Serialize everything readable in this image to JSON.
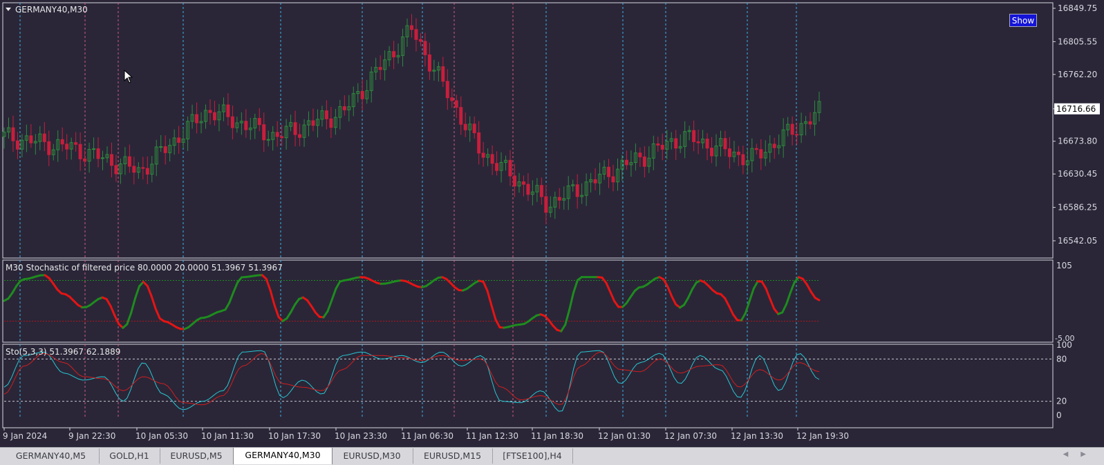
{
  "main_chart": {
    "title": "GERMANY40,M30",
    "price_labels": [
      "16849.75",
      "16805.55",
      "16762.20",
      "16716.66",
      "16673.80",
      "16630.45",
      "16586.25",
      "16542.05"
    ],
    "current_price": "16716.66",
    "show_button": "Show"
  },
  "indicator1": {
    "label": "M30 Stochastic of filtered price 80.0000 20.0000 51.3967 51.3967",
    "scale_top": "105",
    "scale_bottom": "-5.00",
    "levels": [
      80,
      20
    ]
  },
  "indicator2": {
    "label": "Sto(5,3,3) 51.3967 62.1889",
    "scale_labels": [
      "100",
      "80",
      "20",
      "0"
    ],
    "levels": [
      80,
      20
    ]
  },
  "time_axis": [
    "9 Jan 2024",
    "9 Jan 22:30",
    "10 Jan 05:30",
    "10 Jan 11:30",
    "10 Jan 17:30",
    "10 Jan 23:30",
    "11 Jan 06:30",
    "11 Jan 12:30",
    "11 Jan 18:30",
    "12 Jan 01:30",
    "12 Jan 07:30",
    "12 Jan 13:30",
    "12 Jan 19:30"
  ],
  "tabs": [
    {
      "label": "GERMANY40,M5",
      "active": false
    },
    {
      "label": "GOLD,H1",
      "active": false
    },
    {
      "label": "EURUSD,M5",
      "active": false
    },
    {
      "label": "GERMANY40,M30",
      "active": true
    },
    {
      "label": "EURUSD,M30",
      "active": false
    },
    {
      "label": "EURUSD,M15",
      "active": false
    },
    {
      "label": "[FTSE100],H4",
      "active": false
    }
  ],
  "colors": {
    "background": "#2a2638",
    "bull_candle": "#2e8b3c",
    "bear_candle": "#c81e3c",
    "stoch_up": "#1e8c1e",
    "stoch_down": "#e61414",
    "main_line": "#28c8d2",
    "signal_line": "#d21e1e",
    "separator_day": "#3cb4e6",
    "separator_alt": "#d25a82"
  },
  "chart_data": [
    {
      "type": "candlestick",
      "title": "GERMANY40,M30",
      "ylim": [
        16520,
        16855
      ],
      "x": [
        "9 Jan 2024",
        "9 Jan 22:30",
        "10 Jan 05:30",
        "10 Jan 11:30",
        "10 Jan 17:30",
        "10 Jan 23:30",
        "11 Jan 06:30",
        "11 Jan 12:30",
        "11 Jan 18:30",
        "12 Jan 01:30",
        "12 Jan 07:30",
        "12 Jan 13:30",
        "12 Jan 19:30"
      ],
      "close": [
        16680,
        16665,
        16634,
        16715,
        16680,
        16713,
        16822,
        16662,
        16590,
        16636,
        16680,
        16650,
        16712
      ]
    },
    {
      "type": "line",
      "title": "M30 Stochastic of filtered price",
      "ylim": [
        -5,
        105
      ],
      "levels": [
        80,
        20
      ],
      "values": [
        50,
        82,
        88,
        60,
        40,
        55,
        10,
        78,
        20,
        8,
        25,
        35,
        85,
        88,
        20,
        55,
        25,
        80,
        85,
        75,
        80,
        70,
        85,
        65,
        80,
        10,
        15,
        30,
        5,
        85,
        85,
        40,
        70,
        85,
        40,
        80,
        60,
        20,
        80,
        30,
        85,
        51
      ]
    },
    {
      "type": "line",
      "title": "Sto(5,3,3)",
      "ylim": [
        0,
        100
      ],
      "levels": [
        80,
        20
      ],
      "series": [
        {
          "values": [
            40,
            85,
            90,
            60,
            50,
            55,
            20,
            75,
            30,
            8,
            20,
            35,
            90,
            92,
            25,
            50,
            30,
            85,
            90,
            80,
            85,
            75,
            90,
            70,
            85,
            20,
            18,
            35,
            5,
            90,
            92,
            45,
            75,
            88,
            45,
            85,
            65,
            25,
            85,
            35,
            88,
            51
          ]
        },
        {
          "values": [
            30,
            70,
            88,
            75,
            55,
            52,
            35,
            55,
            45,
            18,
            15,
            28,
            70,
            88,
            45,
            40,
            35,
            65,
            85,
            85,
            82,
            78,
            85,
            78,
            80,
            40,
            22,
            28,
            15,
            70,
            90,
            65,
            62,
            80,
            60,
            70,
            72,
            40,
            65,
            50,
            75,
            62
          ]
        }
      ]
    }
  ]
}
